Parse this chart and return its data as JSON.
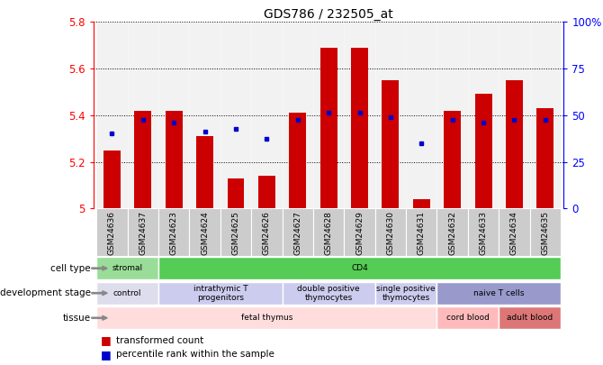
{
  "title": "GDS786 / 232505_at",
  "samples": [
    "GSM24636",
    "GSM24637",
    "GSM24623",
    "GSM24624",
    "GSM24625",
    "GSM24626",
    "GSM24627",
    "GSM24628",
    "GSM24629",
    "GSM24630",
    "GSM24631",
    "GSM24632",
    "GSM24633",
    "GSM24634",
    "GSM24635"
  ],
  "red_values": [
    5.25,
    5.42,
    5.42,
    5.31,
    5.13,
    5.14,
    5.41,
    5.69,
    5.69,
    5.55,
    5.04,
    5.42,
    5.49,
    5.55,
    5.43
  ],
  "blue_values": [
    5.32,
    5.38,
    5.37,
    5.33,
    5.34,
    5.3,
    5.38,
    5.41,
    5.41,
    5.39,
    5.28,
    5.38,
    5.37,
    5.38,
    5.38
  ],
  "ymin": 5.0,
  "ymax": 5.8,
  "yticks": [
    5.0,
    5.2,
    5.4,
    5.6,
    5.8
  ],
  "ytick_labels": [
    "5",
    "5.2",
    "5.4",
    "5.6",
    "5.8"
  ],
  "y2ticks_labels": [
    "0",
    "25",
    "50",
    "75",
    "100%"
  ],
  "bar_color": "#cc0000",
  "dot_color": "#0000cc",
  "cell_type_groups": [
    {
      "label": "stromal",
      "start": 0,
      "end": 2,
      "color": "#99dd99"
    },
    {
      "label": "CD4",
      "start": 2,
      "end": 15,
      "color": "#55cc55"
    }
  ],
  "dev_stage_groups": [
    {
      "label": "control",
      "start": 0,
      "end": 2,
      "color": "#ddddee"
    },
    {
      "label": "intrathymic T\nprogenitors",
      "start": 2,
      "end": 6,
      "color": "#ccccee"
    },
    {
      "label": "double positive\nthymocytes",
      "start": 6,
      "end": 9,
      "color": "#ccccee"
    },
    {
      "label": "single positive\nthymocytes",
      "start": 9,
      "end": 11,
      "color": "#ccccee"
    },
    {
      "label": "naive T cells",
      "start": 11,
      "end": 15,
      "color": "#9999cc"
    }
  ],
  "tissue_groups": [
    {
      "label": "fetal thymus",
      "start": 0,
      "end": 11,
      "color": "#ffdddd"
    },
    {
      "label": "cord blood",
      "start": 11,
      "end": 13,
      "color": "#ffbbbb"
    },
    {
      "label": "adult blood",
      "start": 13,
      "end": 15,
      "color": "#dd7777"
    }
  ],
  "legend_items": [
    {
      "label": "transformed count",
      "color": "#cc0000"
    },
    {
      "label": "percentile rank within the sample",
      "color": "#0000cc"
    }
  ],
  "row_labels": [
    "cell type",
    "development stage",
    "tissue"
  ],
  "col_bg_color": "#cccccc"
}
